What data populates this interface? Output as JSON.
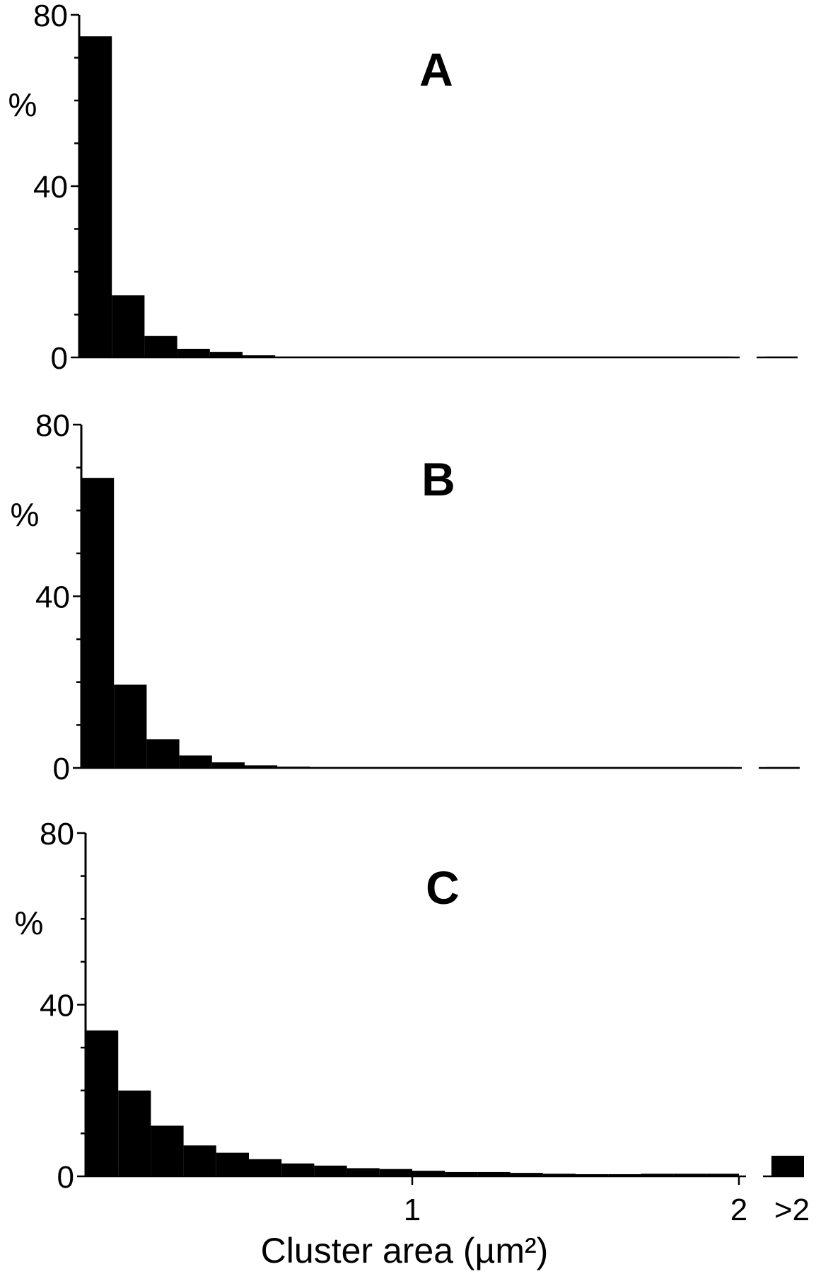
{
  "chart_data": [
    {
      "type": "bar",
      "title": "A",
      "ylabel": "%",
      "ylim": [
        0,
        80
      ],
      "yticks": [
        "0",
        "40",
        "80"
      ],
      "bin_width": 0.1,
      "xlim": [
        0,
        2
      ],
      "values": [
        75,
        14.5,
        5,
        2,
        1.3,
        0.5,
        0.2,
        0.2,
        0.2,
        0.2,
        0.2,
        0.2,
        0.2,
        0.2,
        0.2,
        0.2,
        0.2,
        0.2,
        0.2,
        0.2
      ],
      "overflow_value": 0.2
    },
    {
      "type": "bar",
      "title": "B",
      "ylabel": "%",
      "ylim": [
        0,
        80
      ],
      "yticks": [
        "0",
        "40",
        "80"
      ],
      "bin_width": 0.1,
      "xlim": [
        0,
        2
      ],
      "values": [
        67.6,
        19.4,
        6.7,
        2.9,
        1.3,
        0.6,
        0.3,
        0.2,
        0.2,
        0.2,
        0.2,
        0.2,
        0.2,
        0.2,
        0.2,
        0.2,
        0.2,
        0.2,
        0.2,
        0.2
      ],
      "overflow_value": 0.2
    },
    {
      "type": "bar",
      "title": "C",
      "ylabel": "%",
      "ylim": [
        0,
        80
      ],
      "yticks": [
        "0",
        "40",
        "80"
      ],
      "bin_width": 0.1,
      "xlim": [
        0,
        2
      ],
      "xticks": [
        "1",
        "2",
        ">2"
      ],
      "xlabel": "Cluster area (µm²)",
      "values": [
        34,
        20,
        11.8,
        7.2,
        5.5,
        4,
        3,
        2.5,
        1.9,
        1.7,
        1.3,
        1.0,
        1.0,
        0.8,
        0.6,
        0.5,
        0.5,
        0.6,
        0.6,
        0.6
      ],
      "overflow_value": 4.8
    }
  ],
  "colors": {
    "bars": "#000000",
    "background": "#ffffff"
  }
}
